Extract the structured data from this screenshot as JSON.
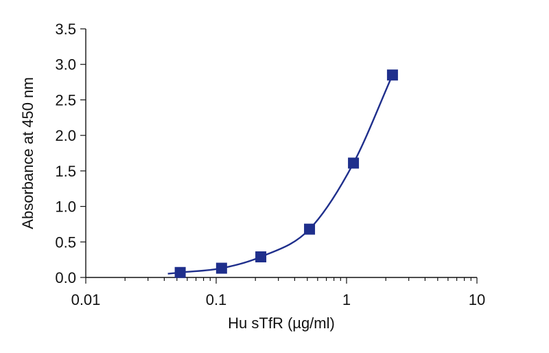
{
  "chart_data": {
    "type": "scatter",
    "xlabel": "Hu sTfR (µg/ml)",
    "ylabel": "Absorbance at 450 nm",
    "x_scale": "log",
    "xlim": [
      0.01,
      10
    ],
    "ylim": [
      0,
      3.5
    ],
    "x_ticks": [
      {
        "value": 0.01,
        "label": "0.01"
      },
      {
        "value": 0.1,
        "label": "0.1"
      },
      {
        "value": 1,
        "label": "1"
      },
      {
        "value": 10,
        "label": "10"
      }
    ],
    "y_ticks": [
      {
        "value": 0,
        "label": "0.0"
      },
      {
        "value": 0.5,
        "label": "0.5"
      },
      {
        "value": 1.0,
        "label": "1.0"
      },
      {
        "value": 1.5,
        "label": "1.5"
      },
      {
        "value": 2.0,
        "label": "2.0"
      },
      {
        "value": 2.5,
        "label": "2.5"
      },
      {
        "value": 3.0,
        "label": "3.0"
      },
      {
        "value": 3.5,
        "label": "3.5"
      }
    ],
    "series": [
      {
        "marker": "square",
        "color": "#1f2f8c",
        "x": [
          0.053,
          0.11,
          0.22,
          0.52,
          1.13,
          2.25
        ],
        "y": [
          0.07,
          0.13,
          0.29,
          0.68,
          1.61,
          2.85
        ]
      }
    ],
    "fit_curve": true,
    "grid": false
  }
}
